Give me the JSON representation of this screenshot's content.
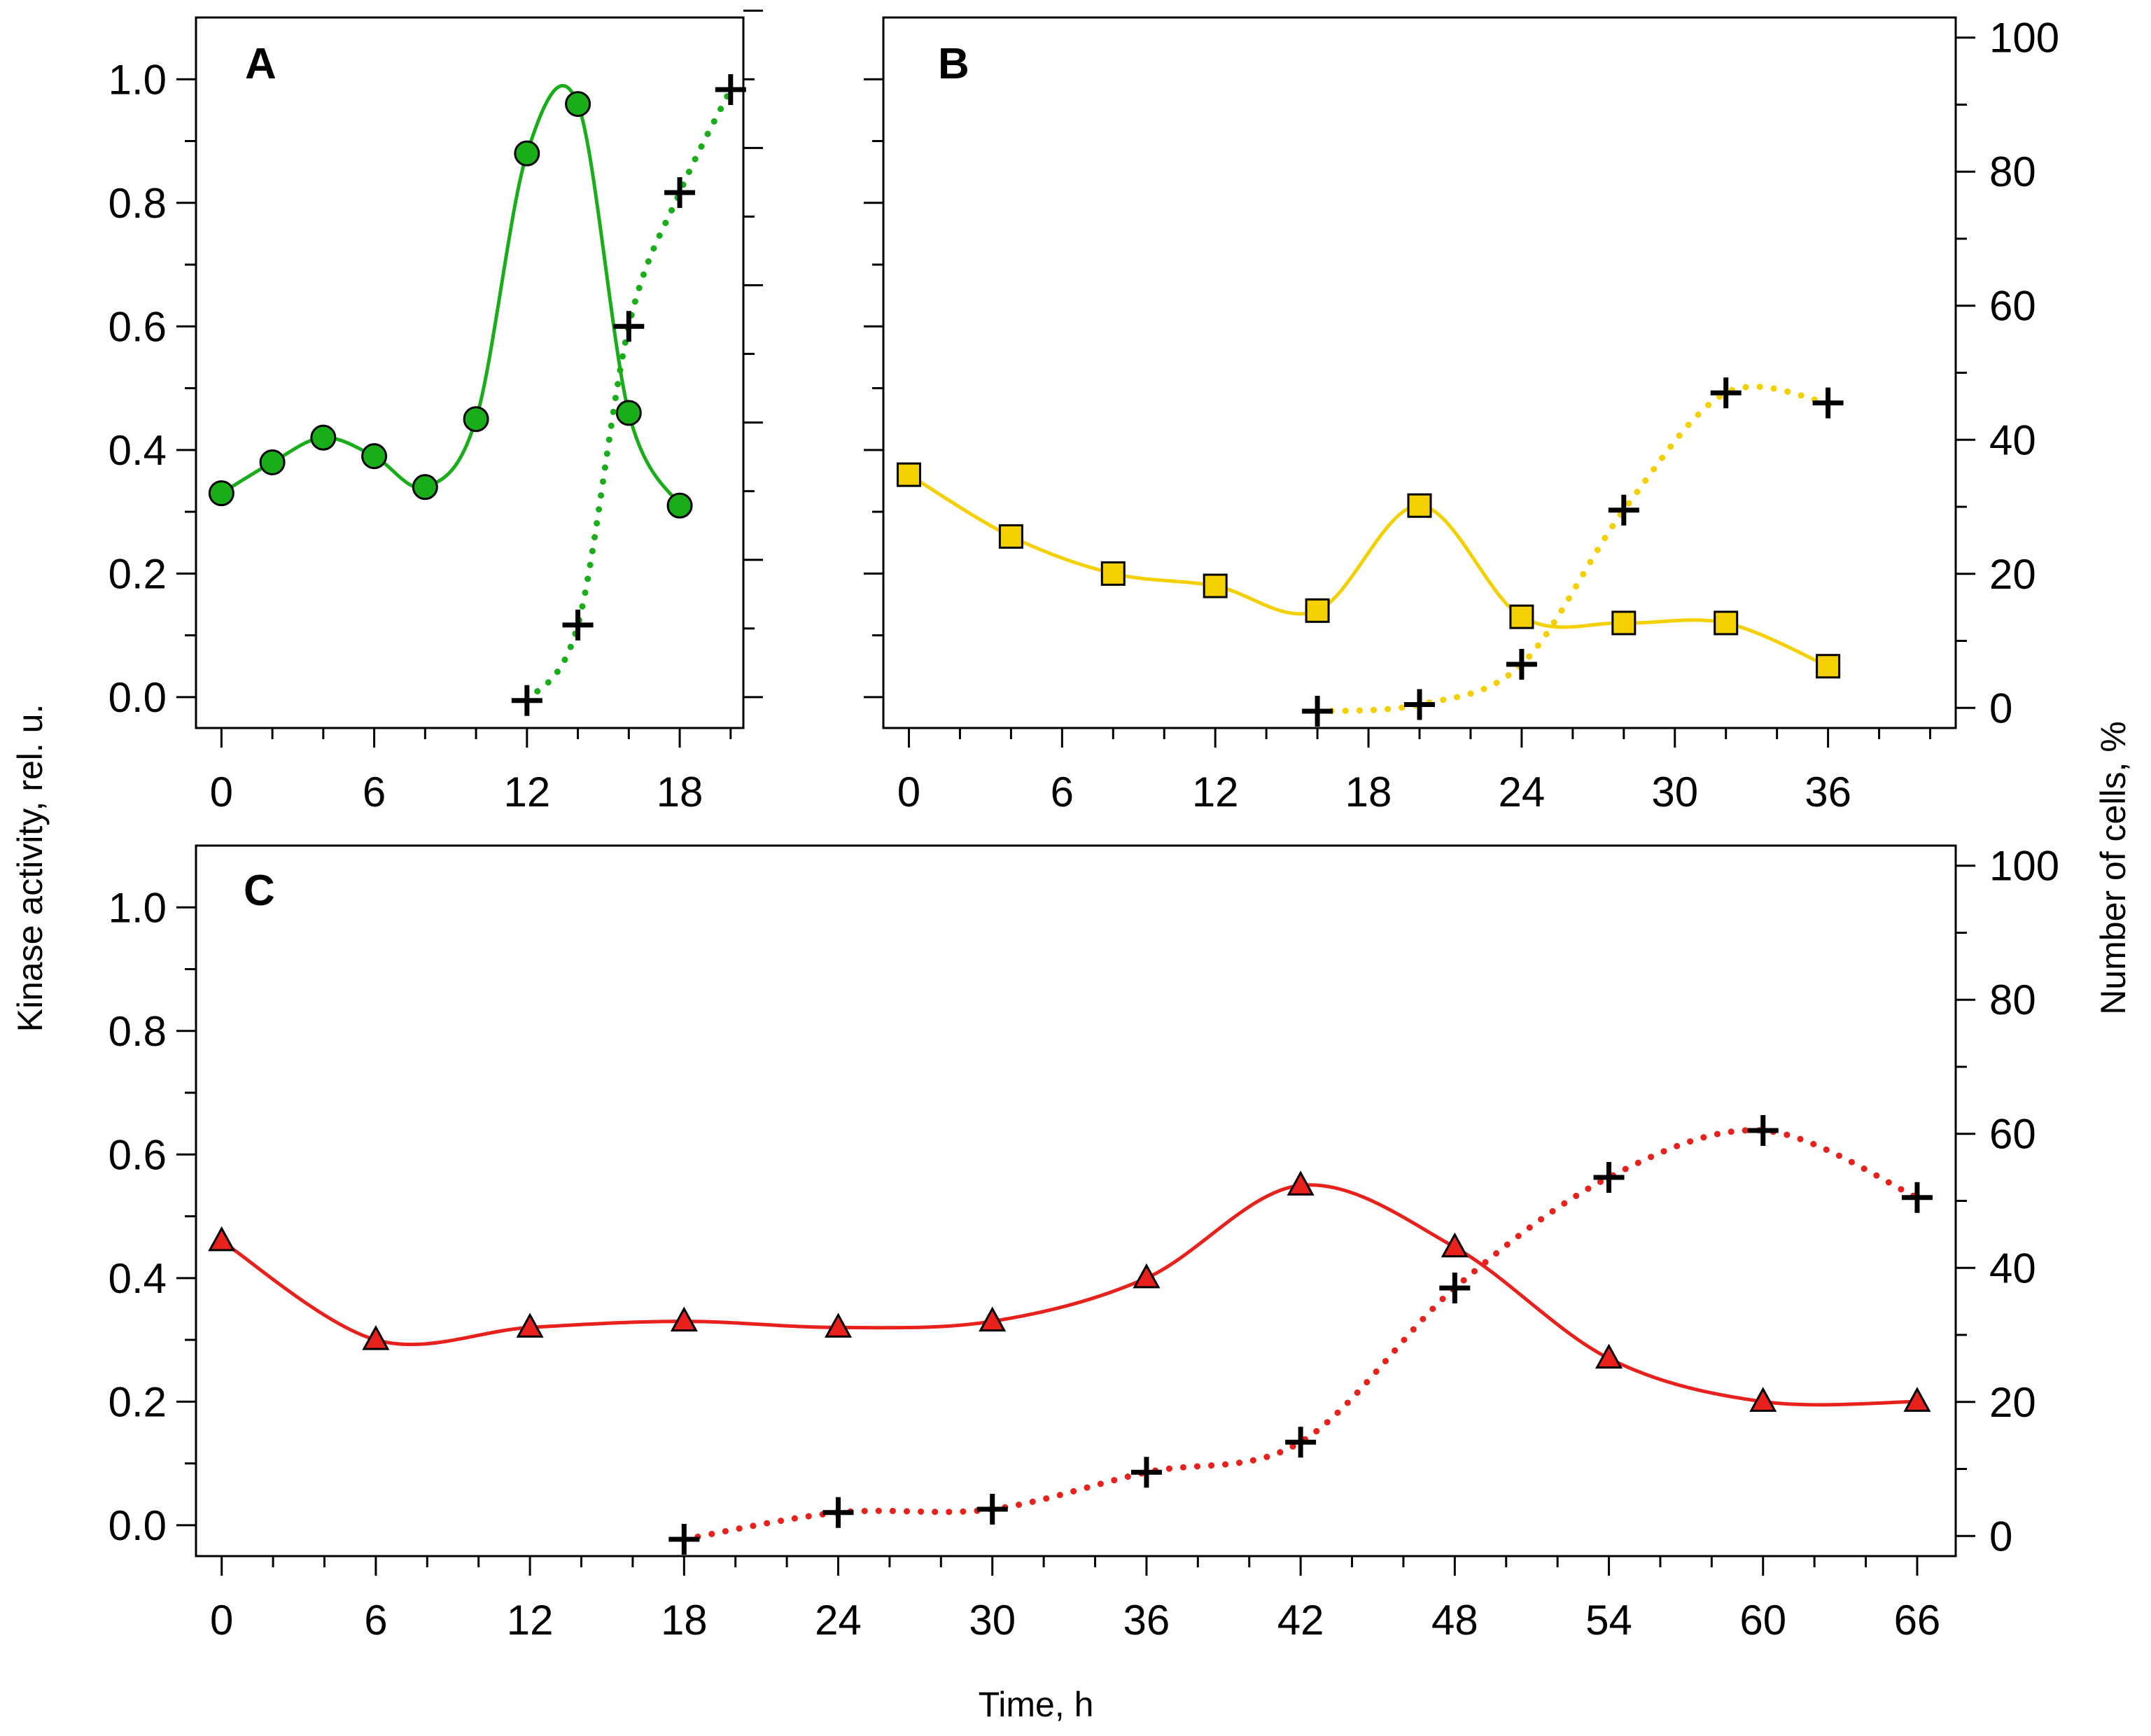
{
  "chart_data": [
    {
      "panel": "A",
      "type": "line",
      "xlim": [
        -1,
        20.5
      ],
      "xticks": [
        0,
        6,
        12,
        18
      ],
      "ylim": [
        -0.05,
        1.1
      ],
      "yticks": [
        0.0,
        0.2,
        0.4,
        0.6,
        0.8,
        1.0
      ],
      "y2lim": [
        -4.5,
        99
      ],
      "color": "#1aad1a",
      "series": [
        {
          "name": "Kinase activity",
          "axis": "left",
          "marker": "circle",
          "style": "solid",
          "x": [
            0,
            2,
            4,
            6,
            8,
            10,
            12,
            14,
            16,
            18
          ],
          "y": [
            0.33,
            0.38,
            0.42,
            0.39,
            0.34,
            0.45,
            0.88,
            0.96,
            0.46,
            0.31
          ]
        },
        {
          "name": "Number of cells",
          "axis": "right",
          "marker": "plus",
          "style": "dotted",
          "x": [
            12,
            14,
            16,
            18,
            20
          ],
          "y": [
            -0.5,
            10.5,
            54,
            73.5,
            88.5
          ]
        }
      ]
    },
    {
      "panel": "B",
      "type": "line",
      "xlim": [
        -1,
        41
      ],
      "xticks": [
        0,
        6,
        12,
        18,
        24,
        30,
        36
      ],
      "ylim": [
        -0.05,
        1.1
      ],
      "y2ticks": [
        0,
        20,
        40,
        60,
        80,
        100
      ],
      "y2lim": [
        -3,
        103
      ],
      "color": "#f5d000",
      "series": [
        {
          "name": "Kinase activity",
          "axis": "left",
          "marker": "square",
          "style": "solid",
          "x": [
            0,
            4,
            8,
            12,
            16,
            20,
            24,
            28,
            32,
            36
          ],
          "y": [
            0.36,
            0.26,
            0.2,
            0.18,
            0.14,
            0.31,
            0.13,
            0.12,
            0.12,
            0.05
          ]
        },
        {
          "name": "Number of cells",
          "axis": "right",
          "marker": "plus",
          "style": "dotted",
          "x": [
            16,
            20,
            24,
            28,
            32,
            36
          ],
          "y": [
            -0.5,
            0.5,
            6.5,
            29.5,
            47,
            45.5
          ]
        }
      ]
    },
    {
      "panel": "C",
      "type": "line",
      "xlim": [
        -1,
        67.5
      ],
      "xticks": [
        0,
        6,
        12,
        18,
        24,
        30,
        36,
        42,
        48,
        54,
        60,
        66
      ],
      "ylim": [
        -0.05,
        1.1
      ],
      "yticks": [
        0.0,
        0.2,
        0.4,
        0.6,
        0.8,
        1.0
      ],
      "y2ticks": [
        0,
        20,
        40,
        60,
        80,
        100
      ],
      "y2lim": [
        -3,
        103
      ],
      "color": "#e8211c",
      "series": [
        {
          "name": "Kinase activity",
          "axis": "left",
          "marker": "triangle",
          "style": "solid",
          "x": [
            0,
            6,
            12,
            18,
            24,
            30,
            36,
            42,
            48,
            54,
            60,
            66
          ],
          "y": [
            0.46,
            0.3,
            0.32,
            0.33,
            0.32,
            0.33,
            0.4,
            0.55,
            0.45,
            0.27,
            0.2,
            0.2
          ]
        },
        {
          "name": "Number of cells",
          "axis": "right",
          "marker": "plus",
          "style": "dotted",
          "x": [
            18,
            24,
            30,
            36,
            42,
            48,
            54,
            60,
            66
          ],
          "y": [
            -0.5,
            3.5,
            4,
            9.5,
            14,
            37,
            53.5,
            60.5,
            50.5
          ]
        }
      ]
    }
  ],
  "labels": {
    "panel_a": "A",
    "panel_b": "B",
    "panel_c": "C",
    "ylabel": "Kinase activity, rel. u.",
    "y2label": "Number of cells, %",
    "xlabel": "Time, h"
  }
}
